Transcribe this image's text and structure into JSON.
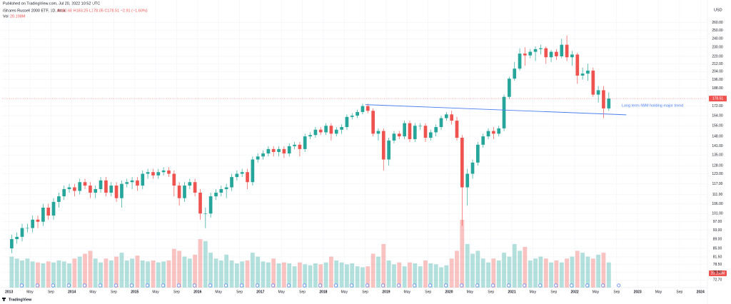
{
  "header": {
    "published": "Published on TradingView.com, Jul 20, 2022 10:52 UTC",
    "brand": "TradingView"
  },
  "chart_data": {
    "type": "candlestick",
    "title": "iShares Russell 2000 ETF, 1D, Arca",
    "ohlc_text": "O182.68 H183.25 L178.05 C178.51 −2.91 (−1.60%)",
    "volume_name": "Vol",
    "volume_text": "20.198M",
    "currency": "USD",
    "annotation": "Long term IWM holding major trend",
    "log_scale": true,
    "grid": true,
    "up_color": "#26a69a",
    "down_color": "#ef5350",
    "trend_color": "#4c7ef0",
    "last_price": {
      "value": 178.51,
      "label": "178.51"
    },
    "trendline": {
      "x": [
        2018.67,
        2022.82
      ],
      "values": [
        173.2,
        164.7
      ]
    },
    "xlim": [
      2012.89,
      2024.1
    ],
    "ylim": [
      70,
      270
    ],
    "xticks": [
      {
        "value": 2013,
        "label": "2013"
      },
      {
        "value": 2013.333,
        "label": "May"
      },
      {
        "value": 2013.667,
        "label": "Sep"
      },
      {
        "value": 2014,
        "label": "2014"
      },
      {
        "value": 2014.333,
        "label": "May"
      },
      {
        "value": 2014.667,
        "label": "Sep"
      },
      {
        "value": 2015,
        "label": "2015"
      },
      {
        "value": 2015.333,
        "label": "May"
      },
      {
        "value": 2015.667,
        "label": "Sep"
      },
      {
        "value": 2016,
        "label": "2016"
      },
      {
        "value": 2016.333,
        "label": "May"
      },
      {
        "value": 2016.667,
        "label": "Sep"
      },
      {
        "value": 2017,
        "label": "2017"
      },
      {
        "value": 2017.333,
        "label": "May"
      },
      {
        "value": 2017.667,
        "label": "Sep"
      },
      {
        "value": 2018,
        "label": "2018"
      },
      {
        "value": 2018.333,
        "label": "May"
      },
      {
        "value": 2018.667,
        "label": "Sep"
      },
      {
        "value": 2019,
        "label": "2019"
      },
      {
        "value": 2019.333,
        "label": "May"
      },
      {
        "value": 2019.667,
        "label": "Sep"
      },
      {
        "value": 2020,
        "label": "2020"
      },
      {
        "value": 2020.333,
        "label": "May"
      },
      {
        "value": 2020.667,
        "label": "Sep"
      },
      {
        "value": 2021,
        "label": "2021"
      },
      {
        "value": 2021.333,
        "label": "May"
      },
      {
        "value": 2021.667,
        "label": "Sep"
      },
      {
        "value": 2022,
        "label": "2022"
      },
      {
        "value": 2022.333,
        "label": "May"
      },
      {
        "value": 2022.667,
        "label": "Sep"
      },
      {
        "value": 2023,
        "label": "2023"
      },
      {
        "value": 2023.333,
        "label": "May"
      },
      {
        "value": 2023.667,
        "label": "Sep"
      },
      {
        "value": 2024,
        "label": "2024"
      }
    ],
    "yticks": [
      {
        "value": 260,
        "label": "260.00"
      },
      {
        "value": 250,
        "label": "250.00"
      },
      {
        "value": 240,
        "label": "240.00"
      },
      {
        "value": 230,
        "label": "230.00"
      },
      {
        "value": 220,
        "label": "220.00"
      },
      {
        "value": 212,
        "label": "212.00"
      },
      {
        "value": 204,
        "label": "204.00"
      },
      {
        "value": 196,
        "label": "196.00"
      },
      {
        "value": 188,
        "label": "188.00"
      },
      {
        "value": 172,
        "label": "172.00"
      },
      {
        "value": 164,
        "label": "164.00"
      },
      {
        "value": 156,
        "label": "156.00"
      },
      {
        "value": 148,
        "label": "148.00"
      },
      {
        "value": 141,
        "label": "141.00"
      },
      {
        "value": 135,
        "label": "135.00"
      },
      {
        "value": 128,
        "label": "128.00"
      },
      {
        "value": 123,
        "label": "123.00"
      },
      {
        "value": 117,
        "label": "117.00"
      },
      {
        "value": 111,
        "label": "111.00"
      },
      {
        "value": 106,
        "label": "106.00"
      },
      {
        "value": 101,
        "label": "101.00"
      },
      {
        "value": 97,
        "label": "97.00"
      },
      {
        "value": 93,
        "label": "93.00"
      },
      {
        "value": 89,
        "label": "89.00"
      },
      {
        "value": 85,
        "label": "85.00"
      },
      {
        "value": 81.5,
        "label": "81.50"
      },
      {
        "value": 78.5,
        "label": "78.50"
      },
      {
        "value": 75.5,
        "label": "75.50"
      },
      {
        "value": 72.7,
        "label": "72.70"
      }
    ],
    "x": [
      2013.042,
      2013.125,
      2013.208,
      2013.292,
      2013.375,
      2013.458,
      2013.542,
      2013.625,
      2013.708,
      2013.792,
      2013.875,
      2013.958,
      2014.042,
      2014.125,
      2014.208,
      2014.292,
      2014.375,
      2014.458,
      2014.542,
      2014.625,
      2014.708,
      2014.792,
      2014.875,
      2014.958,
      2015.042,
      2015.125,
      2015.208,
      2015.292,
      2015.375,
      2015.458,
      2015.542,
      2015.625,
      2015.708,
      2015.792,
      2015.875,
      2015.958,
      2016.042,
      2016.125,
      2016.208,
      2016.292,
      2016.375,
      2016.458,
      2016.542,
      2016.625,
      2016.708,
      2016.792,
      2016.875,
      2016.958,
      2017.042,
      2017.125,
      2017.208,
      2017.292,
      2017.375,
      2017.458,
      2017.542,
      2017.625,
      2017.708,
      2017.792,
      2017.875,
      2017.958,
      2018.042,
      2018.125,
      2018.208,
      2018.292,
      2018.375,
      2018.458,
      2018.542,
      2018.625,
      2018.708,
      2018.792,
      2018.875,
      2018.958,
      2019.042,
      2019.125,
      2019.208,
      2019.292,
      2019.375,
      2019.458,
      2019.542,
      2019.625,
      2019.708,
      2019.792,
      2019.875,
      2019.958,
      2020.042,
      2020.125,
      2020.208,
      2020.292,
      2020.375,
      2020.458,
      2020.542,
      2020.625,
      2020.708,
      2020.792,
      2020.875,
      2020.958,
      2021.042,
      2021.125,
      2021.208,
      2021.292,
      2021.375,
      2021.458,
      2021.542,
      2021.625,
      2021.708,
      2021.792,
      2021.875,
      2021.958,
      2022.042,
      2022.125,
      2022.208,
      2022.292,
      2022.375,
      2022.458,
      2022.542
    ],
    "open": [
      85,
      89,
      90,
      94,
      94,
      98,
      97,
      104,
      100,
      107,
      110,
      114,
      115,
      113,
      118,
      116,
      112,
      114,
      119,
      112,
      116,
      109,
      117,
      118,
      119,
      116,
      123,
      124,
      122,
      124,
      125,
      123,
      116,
      109,
      116,
      118,
      112,
      101,
      101,
      110,
      112,
      114,
      115,
      121,
      123,
      124,
      118,
      132,
      134,
      136,
      139,
      137,
      139,
      136,
      141,
      142,
      139,
      148,
      149,
      153,
      151,
      156,
      150,
      153,
      155,
      163,
      164,
      167,
      172,
      168,
      150,
      152,
      132,
      145,
      150,
      148,
      158,
      146,
      156,
      156,
      147,
      151,
      155,
      162,
      165,
      160,
      147,
      115,
      123,
      130,
      142,
      148,
      152,
      150,
      154,
      180,
      197,
      207,
      223,
      221,
      225,
      228,
      229,
      219,
      225,
      220,
      233,
      219,
      222,
      200,
      202,
      205,
      182,
      186,
      170
    ],
    "high": [
      91,
      92,
      96,
      96,
      100,
      100,
      106,
      106,
      109,
      112,
      116,
      117,
      117,
      120,
      120,
      118,
      116,
      121,
      121,
      118,
      118,
      119,
      120,
      121,
      121,
      125,
      126,
      126,
      126,
      127,
      127,
      125,
      118,
      118,
      120,
      120,
      114,
      104,
      112,
      114,
      116,
      117,
      123,
      125,
      126,
      126,
      134,
      136,
      138,
      141,
      141,
      141,
      141,
      143,
      144,
      144,
      150,
      151,
      155,
      155,
      158,
      158,
      155,
      157,
      165,
      166,
      169,
      174,
      174,
      170,
      154,
      154,
      147,
      152,
      152,
      160,
      160,
      158,
      158,
      158,
      153,
      157,
      164,
      167,
      168,
      163,
      149,
      126,
      132,
      144,
      150,
      154,
      155,
      156,
      182,
      199,
      214,
      229,
      230,
      228,
      231,
      233,
      231,
      227,
      228,
      240,
      244,
      226,
      224,
      208,
      212,
      208,
      190,
      190,
      184
    ],
    "low": [
      83,
      87,
      88,
      92,
      92,
      94,
      95,
      98,
      98,
      104,
      108,
      112,
      110,
      111,
      114,
      109,
      109,
      112,
      110,
      110,
      107,
      104,
      115,
      114,
      113,
      114,
      120,
      120,
      120,
      122,
      121,
      110,
      105,
      107,
      114,
      110,
      98,
      94,
      99,
      108,
      110,
      109,
      113,
      119,
      121,
      114,
      116,
      130,
      132,
      134,
      134,
      134,
      133,
      134,
      139,
      134,
      137,
      146,
      147,
      149,
      149,
      145,
      148,
      150,
      153,
      161,
      162,
      165,
      166,
      148,
      145,
      125,
      128,
      143,
      146,
      146,
      144,
      144,
      153,
      144,
      145,
      148,
      153,
      160,
      157,
      145,
      95,
      105,
      120,
      128,
      140,
      146,
      146,
      148,
      152,
      178,
      195,
      205,
      210,
      218,
      215,
      222,
      212,
      214,
      216,
      218,
      215,
      210,
      192,
      196,
      195,
      180,
      175,
      162,
      168
    ],
    "close": [
      89,
      90,
      94,
      94,
      98,
      97,
      104,
      100,
      107,
      110,
      114,
      115,
      113,
      118,
      116,
      112,
      114,
      119,
      112,
      116,
      109,
      117,
      118,
      119,
      116,
      123,
      124,
      122,
      124,
      125,
      123,
      116,
      109,
      116,
      118,
      112,
      101,
      101,
      110,
      112,
      114,
      115,
      121,
      123,
      124,
      118,
      132,
      134,
      136,
      139,
      137,
      139,
      136,
      141,
      142,
      139,
      148,
      149,
      153,
      151,
      156,
      150,
      153,
      155,
      163,
      164,
      167,
      172,
      168,
      150,
      152,
      132,
      145,
      150,
      148,
      158,
      146,
      156,
      156,
      147,
      151,
      155,
      162,
      165,
      160,
      147,
      115,
      123,
      130,
      142,
      148,
      152,
      150,
      154,
      180,
      197,
      207,
      223,
      221,
      225,
      228,
      229,
      219,
      225,
      220,
      233,
      219,
      222,
      200,
      202,
      205,
      182,
      186,
      170,
      178.51
    ],
    "volume": [
      32,
      30,
      28,
      30,
      27,
      26,
      25,
      27,
      26,
      28,
      27,
      25,
      30,
      32,
      35,
      38,
      30,
      26,
      30,
      28,
      32,
      36,
      28,
      30,
      33,
      28,
      27,
      28,
      26,
      27,
      28,
      40,
      38,
      32,
      30,
      34,
      50,
      48,
      36,
      30,
      28,
      34,
      28,
      25,
      27,
      28,
      36,
      32,
      27,
      26,
      30,
      25,
      26,
      25,
      22,
      26,
      24,
      23,
      25,
      24,
      26,
      32,
      28,
      26,
      24,
      25,
      22,
      21,
      22,
      35,
      32,
      45,
      28,
      24,
      26,
      22,
      26,
      25,
      22,
      28,
      25,
      24,
      21,
      23,
      30,
      38,
      70,
      45,
      35,
      38,
      30,
      26,
      30,
      28,
      36,
      32,
      45,
      38,
      42,
      28,
      30,
      32,
      30,
      26,
      28,
      26,
      30,
      32,
      38,
      36,
      32,
      30,
      34,
      36,
      26
    ]
  }
}
